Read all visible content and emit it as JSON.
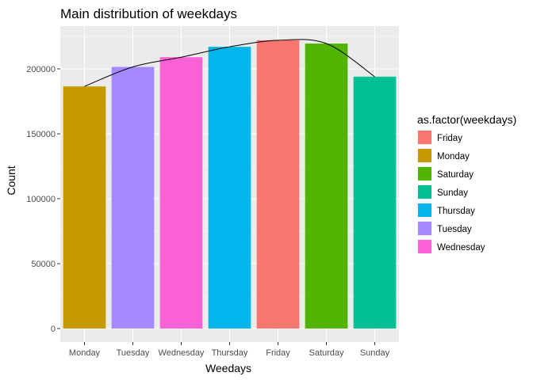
{
  "chart_data": {
    "type": "bar",
    "title": "Main distribution of weekdays",
    "xlabel": "Weedays",
    "ylabel": "Count",
    "categories": [
      "Monday",
      "Tuesday",
      "Wednesday",
      "Thursday",
      "Friday",
      "Saturday",
      "Sunday"
    ],
    "values": [
      186500,
      201500,
      209000,
      217000,
      222000,
      219500,
      194000
    ],
    "bar_colors": [
      "#C49A00",
      "#A58AFF",
      "#FB61D7",
      "#00B6EB",
      "#F8766D",
      "#53B400",
      "#00C094"
    ],
    "trend_line": {
      "type": "line",
      "values": [
        186500,
        201500,
        209000,
        217000,
        222000,
        219500,
        194000
      ],
      "color": "#000000"
    },
    "ylim": [
      0,
      235000
    ],
    "yticks": [
      0,
      50000,
      100000,
      150000,
      200000
    ],
    "ytick_labels": [
      "0",
      "50000",
      "100000",
      "150000",
      "200000"
    ],
    "grid": true,
    "legend": {
      "title": "as.factor(weekdays)",
      "position": "right",
      "entries": [
        {
          "label": "Friday",
          "color": "#F8766D"
        },
        {
          "label": "Monday",
          "color": "#C49A00"
        },
        {
          "label": "Saturday",
          "color": "#53B400"
        },
        {
          "label": "Sunday",
          "color": "#00C094"
        },
        {
          "label": "Thursday",
          "color": "#00B6EB"
        },
        {
          "label": "Tuesday",
          "color": "#A58AFF"
        },
        {
          "label": "Wednesday",
          "color": "#FB61D7"
        }
      ]
    },
    "panel_background": "#EBEBEB",
    "grid_color": "#FFFFFF"
  }
}
